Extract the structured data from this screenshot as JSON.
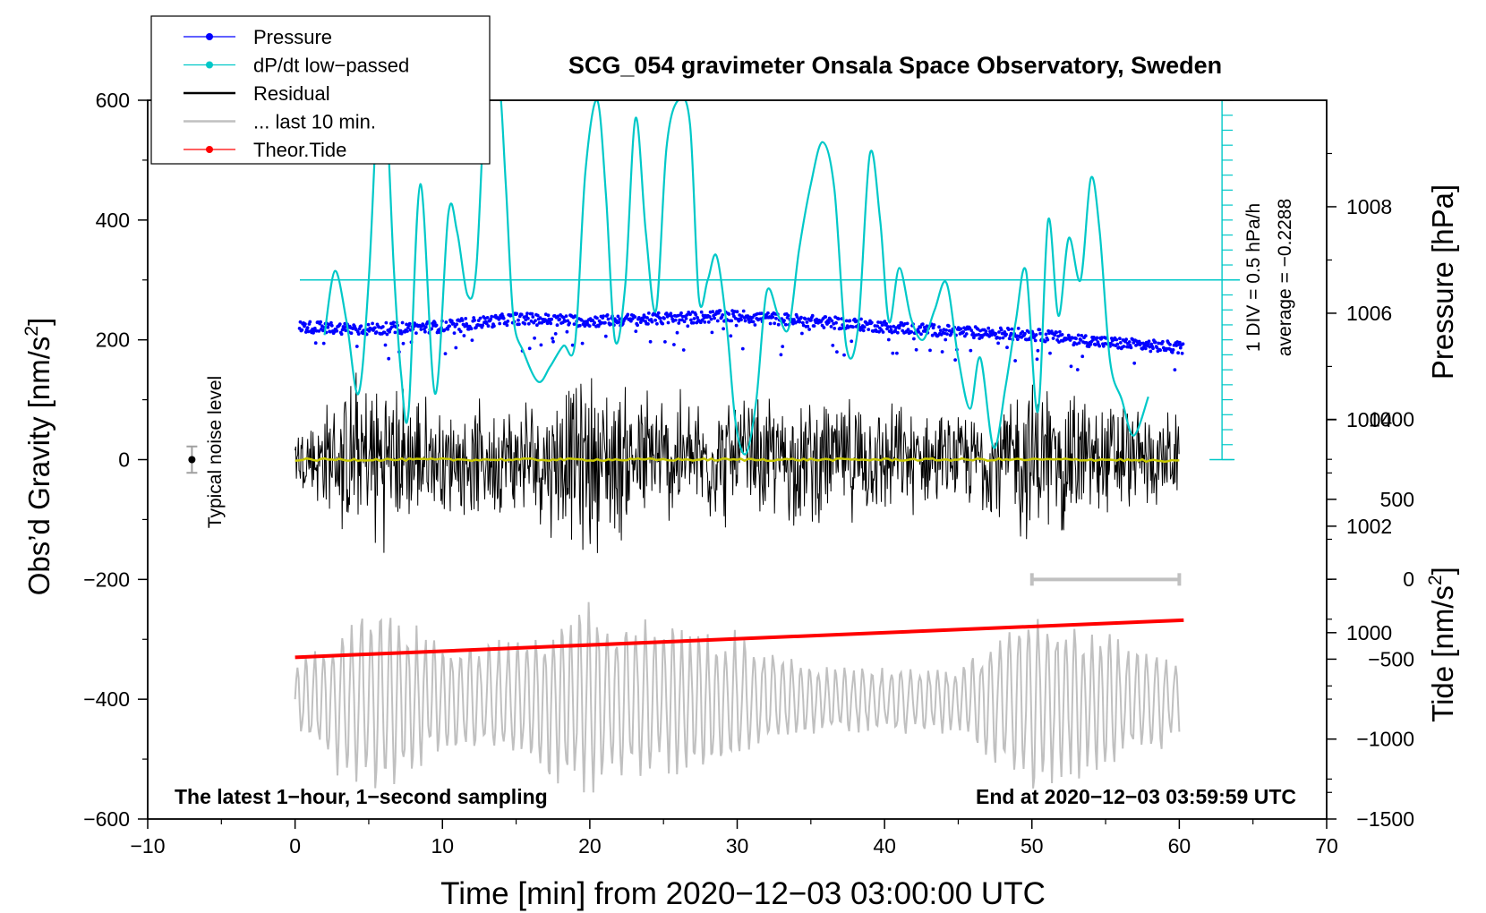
{
  "chart_data": {
    "type": "line",
    "title": "SCG_054 gravimeter Onsala Space Observatory, Sweden",
    "xlabel": "Time [min] from 2020−12−03 03:00:00 UTC",
    "ylabel_left": "Obs’d Gravity [nm/s",
    "ylabel_left_sup": "2",
    "ylabel_left_close": "]",
    "ylabel_pressure": "Pressure [hPa]",
    "ylabel_tide": "Tide [nm/s",
    "ylabel_tide_sup": "2",
    "ylabel_tide_close": "]",
    "xlim": [
      -10,
      70
    ],
    "ylim": [
      -600,
      600
    ],
    "x_ticks": [
      "−10",
      "0",
      "10",
      "20",
      "30",
      "40",
      "50",
      "60",
      "70"
    ],
    "y_ticks": [
      "−600",
      "−400",
      "−200",
      "0",
      "200",
      "400",
      "600"
    ],
    "pressure_axis": {
      "range_hPa": [
        996.5,
        1010
      ],
      "ticks": [
        "1000",
        "1002",
        "1004",
        "1006",
        "1008"
      ],
      "tick_values": [
        1000,
        1002,
        1004,
        1006,
        1008
      ]
    },
    "tide_axis": {
      "ticks": [
        "1000",
        "500",
        "0",
        "−500",
        "−1000",
        "−1500"
      ],
      "tick_values": [
        1000,
        500,
        0,
        -500,
        -1000,
        -1500
      ],
      "range_nm_s2": [
        -1500,
        1000
      ]
    },
    "dpdt_scale": {
      "label_div": "1 DIV = 0.5 hPa/h",
      "label_avg": "average = −0.2288",
      "zero_line_gravity": 300,
      "divisions": 12,
      "div_size_gravity": 25
    },
    "legend": {
      "position": "top-left",
      "entries": [
        {
          "label": "Pressure",
          "color": "#0000ff",
          "marker": true
        },
        {
          "label": "dP/dt low−passed",
          "color": "#00c8c8",
          "marker": true
        },
        {
          "label": "Residual",
          "color": "#000000",
          "marker": false
        },
        {
          "label": "... last 10 min.",
          "color": "#c0c0c0",
          "marker": false
        },
        {
          "label": "Theor.Tide",
          "color": "#ff0000",
          "marker": true
        }
      ]
    },
    "annotations": {
      "bottom_left": "The latest 1−hour, 1−second sampling",
      "bottom_right": "End at 2020−12−03 03:59:59 UTC",
      "noise_label": "Typical noise level",
      "noise_level": {
        "x": -7,
        "y": 0,
        "err": 22
      },
      "last10_bar": {
        "x_start": 50,
        "x_end": 60,
        "y": -200
      }
    },
    "series": [
      {
        "name": "Pressure",
        "unit": "hPa",
        "color": "#0000ff",
        "x": [
          0,
          5,
          10,
          15,
          20,
          25,
          30,
          35,
          40,
          45,
          50,
          55,
          60
        ],
        "values": [
          1005.75,
          1005.7,
          1005.75,
          1005.9,
          1005.85,
          1005.9,
          1005.95,
          1005.85,
          1005.75,
          1005.65,
          1005.6,
          1005.45,
          1005.35
        ]
      },
      {
        "name": "dP/dt low-passed",
        "unit": "gravity-axis position",
        "color": "#00c8c8",
        "x": [
          2,
          2.7,
          3.5,
          4.3,
          5,
          5.7,
          6.2,
          6.7,
          7.2,
          7.7,
          8.5,
          9.5,
          10.4,
          11.0,
          11.7,
          12.3,
          13.0,
          13.8,
          14.3,
          14.8,
          15.5,
          16.5,
          17.3,
          18.2,
          19.0,
          19.7,
          20.5,
          21.1,
          21.7,
          22.4,
          23.1,
          23.8,
          24.5,
          25.2,
          26.0,
          26.8,
          27.4,
          28.0,
          28.6,
          29.3,
          29.9,
          30.6,
          31.3,
          32.0,
          32.8,
          33.5,
          34.2,
          35.0,
          35.8,
          36.6,
          37.4,
          38.2,
          39.0,
          39.7,
          40.3,
          41.0,
          41.8,
          42.6,
          43.4,
          44.2,
          45.0,
          45.8,
          46.5,
          47.4,
          48.2,
          48.9,
          49.6,
          50.4,
          51.1,
          51.8,
          52.5,
          53.3,
          54.0,
          54.6,
          55.3,
          56.1,
          56.9,
          57.9
        ],
        "values": [
          208,
          315,
          230,
          110,
          300,
          640,
          580,
          320,
          140,
          80,
          460,
          110,
          410,
          380,
          275,
          320,
          640,
          640,
          460,
          240,
          180,
          130,
          155,
          190,
          195,
          480,
          600,
          440,
          200,
          290,
          570,
          380,
          250,
          520,
          600,
          560,
          270,
          300,
          340,
          220,
          60,
          10,
          100,
          280,
          240,
          220,
          350,
          460,
          530,
          450,
          190,
          220,
          510,
          400,
          230,
          320,
          235,
          200,
          250,
          295,
          170,
          85,
          170,
          20,
          120,
          230,
          315,
          80,
          400,
          240,
          370,
          300,
          470,
          380,
          165,
          100,
          40,
          105
        ]
      },
      {
        "name": "Residual",
        "unit": "nm/s2",
        "color": "#000000",
        "x": [
          0,
          5,
          10,
          15,
          20,
          25,
          30,
          35,
          40,
          45,
          50,
          55,
          60
        ],
        "envelope": [
          60,
          180,
          100,
          110,
          170,
          130,
          120,
          120,
          110,
          80,
          160,
          120,
          80
        ],
        "trend": [
          0,
          0,
          0,
          0,
          0,
          0,
          0,
          0,
          0,
          0,
          0,
          0,
          -3
        ]
      },
      {
        "name": "... last 10 min.",
        "unit": "nm/s2",
        "color": "#c0c0c0",
        "offset": -400,
        "x": [
          0,
          5,
          10,
          15,
          20,
          25,
          30,
          35,
          40,
          45,
          50,
          55,
          60
        ],
        "envelope": [
          60,
          180,
          100,
          110,
          170,
          130,
          120,
          60,
          60,
          60,
          160,
          120,
          80
        ]
      },
      {
        "name": "Theor.Tide",
        "unit": "nm/s2",
        "color": "#ff0000",
        "x": [
          0,
          60.3
        ],
        "values": [
          -330,
          -268
        ]
      }
    ]
  }
}
